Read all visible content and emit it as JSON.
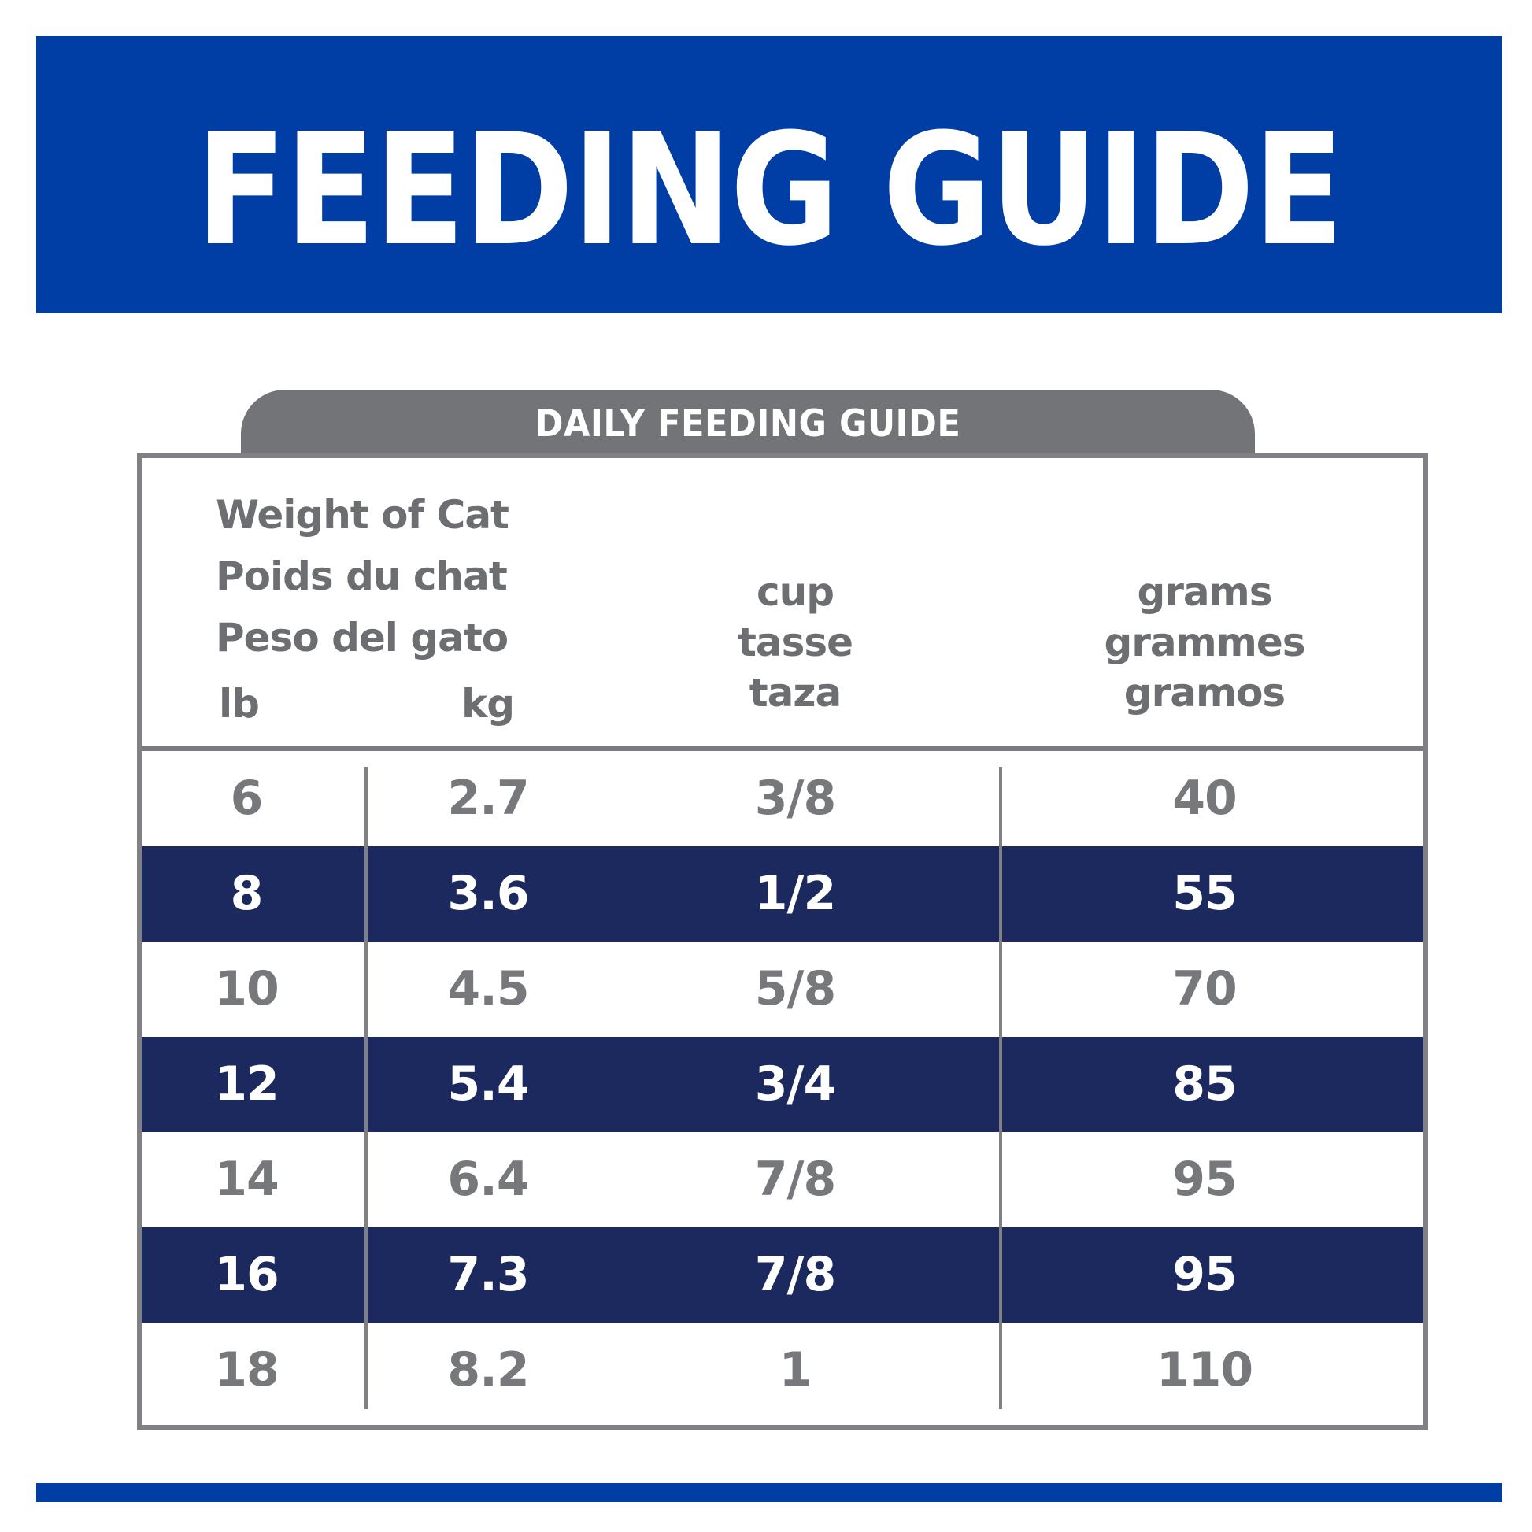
{
  "banner": {
    "title": "FEEDING GUIDE",
    "background_color": "#003da5"
  },
  "table": {
    "tab_label": "DAILY FEEDING GUIDE",
    "header": {
      "weight_labels": [
        "Weight of Cat",
        "Poids du chat",
        "Peso del gato"
      ],
      "lb": "lb",
      "kg": "kg",
      "cup_labels": [
        "cup",
        "tasse",
        "taza"
      ],
      "grams_labels": [
        "grams",
        "grammes",
        "gramos"
      ]
    },
    "rows": [
      {
        "lb": "6",
        "kg": "2.7",
        "cup": "3/8",
        "grams": "40",
        "style": "light"
      },
      {
        "lb": "8",
        "kg": "3.6",
        "cup": "1/2",
        "grams": "55",
        "style": "dark"
      },
      {
        "lb": "10",
        "kg": "4.5",
        "cup": "5/8",
        "grams": "70",
        "style": "light"
      },
      {
        "lb": "12",
        "kg": "5.4",
        "cup": "3/4",
        "grams": "85",
        "style": "dark"
      },
      {
        "lb": "14",
        "kg": "6.4",
        "cup": "7/8",
        "grams": "95",
        "style": "light"
      },
      {
        "lb": "16",
        "kg": "7.3",
        "cup": "7/8",
        "grams": "95",
        "style": "dark"
      },
      {
        "lb": "18",
        "kg": "8.2",
        "cup": "1",
        "grams": "110",
        "style": "light"
      }
    ],
    "colors": {
      "dark_row": "#1b295e",
      "tab": "#737477",
      "border": "#808184",
      "text_gray": "#6d6e71"
    }
  }
}
